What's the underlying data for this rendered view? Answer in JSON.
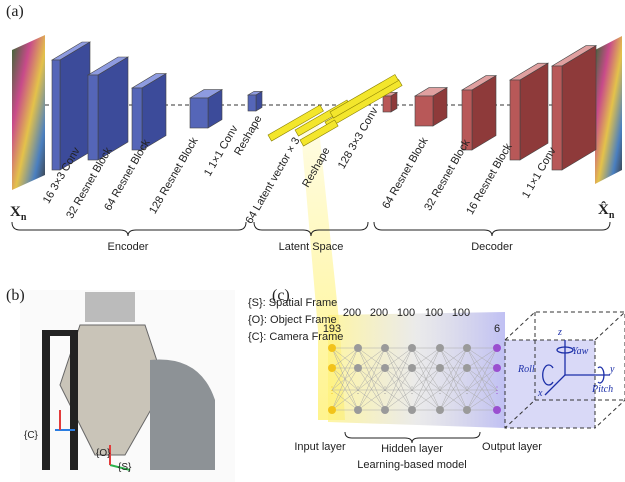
{
  "panel_a": {
    "label": "(a)",
    "input": "X",
    "input_sub": "n",
    "output": "X̂",
    "output_sub": "n",
    "encoder_layers": [
      "16 3×3 Conv",
      "32 Resnet Block",
      "64 Resnet Block",
      "128 Resnet Block",
      "1 1×1 Conv",
      "Reshape",
      "64 Latent vector × 3"
    ],
    "latent_layers": [
      "Reshape"
    ],
    "decoder_layers": [
      "128 3×3 Conv",
      "64 Resnet Block",
      "32 Resnet Block",
      "16 Resnet Block",
      "1 1×1 Conv"
    ],
    "groups": [
      "Encoder",
      "Latent Space",
      "Decoder"
    ]
  },
  "panel_b": {
    "label": "(b)",
    "legend": [
      "{S}: Spatial Frame",
      "{O}: Object Frame",
      "{C}: Camera Frame"
    ],
    "frame_labels": [
      "{C}",
      "{O}",
      "{S}"
    ]
  },
  "panel_c": {
    "label": "(c)",
    "layer_sizes": [
      "193",
      "200",
      "200",
      "100",
      "100",
      "100",
      "6"
    ],
    "layer_names": [
      "Input layer",
      "Hidden layer",
      "Output layer"
    ],
    "model_name": "Learning-based model",
    "axes": [
      "z",
      "Yaw",
      "Roll",
      "y",
      "Pitch",
      "x"
    ]
  }
}
